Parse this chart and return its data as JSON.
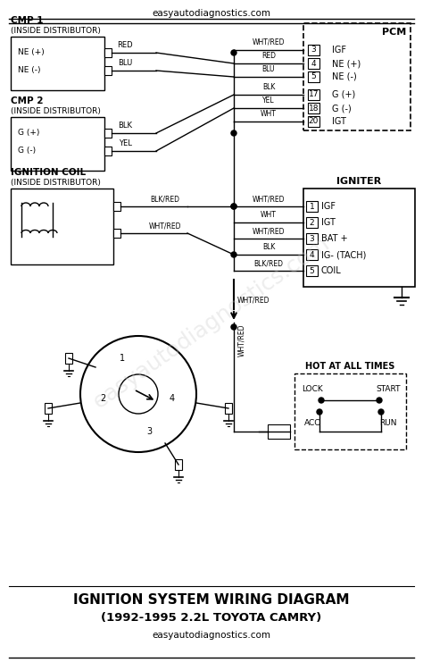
{
  "title_top": "easyautodiagnostics.com",
  "title_bottom_line1": "IGNITION SYSTEM WIRING DIAGRAM",
  "title_bottom_line2": "(1992-1995 2.2L TOYOTA CAMRY)",
  "title_bottom_line3": "easyautodiagnostics.com",
  "bg_color": "#ffffff",
  "line_color": "#000000",
  "watermark_text": "easyautodiagnostics.com",
  "watermark_color": "#cccccc",
  "pcm_label": "PCM",
  "pcm_pins": [
    {
      "num": "3",
      "label": "IGF"
    },
    {
      "num": "4",
      "label": "NE (+)"
    },
    {
      "num": "5",
      "label": "NE (-)"
    },
    {
      "num": "17",
      "label": "G (+)"
    },
    {
      "num": "18",
      "label": "G (-)"
    },
    {
      "num": "20",
      "label": "IGT"
    }
  ],
  "igniter_label": "IGNITER",
  "igniter_pins": [
    {
      "num": "1",
      "label": "IGF"
    },
    {
      "num": "2",
      "label": "IGT"
    },
    {
      "num": "3",
      "label": "BAT +"
    },
    {
      "num": "4",
      "label": "IG- (TACH)"
    },
    {
      "num": "5",
      "label": "COIL"
    }
  ],
  "cmp1_label1": "CMP 1",
  "cmp1_label2": "(INSIDE DISTRIBUTOR)",
  "cmp1_pins": [
    "NE (+)",
    "NE (-)"
  ],
  "cmp1_wires": [
    "RED",
    "BLU"
  ],
  "cmp2_label1": "CMP 2",
  "cmp2_label2": "(INSIDE DISTRIBUTOR)",
  "cmp2_pins": [
    "G (+)",
    "G (-)"
  ],
  "cmp2_wires": [
    "BLK",
    "YEL"
  ],
  "coil_label1": "IGNITION COIL",
  "coil_label2": "(INSIDE DISTRIBUTOR)",
  "coil_wires": [
    "BLK/RED",
    "WHT/RED"
  ],
  "igniter_wires_left": [
    "WHT/RED",
    "WHT",
    "WHT/RED",
    "BLK",
    "BLK/RED"
  ],
  "pcm_wires_top": [
    "WHT/RED",
    "RED",
    "BLU",
    "BLK",
    "YEL",
    "WHT"
  ],
  "hot_label": "HOT AT ALL TIMES",
  "switch_positions": [
    "LOCK",
    "START",
    "ACC",
    "RUN"
  ]
}
